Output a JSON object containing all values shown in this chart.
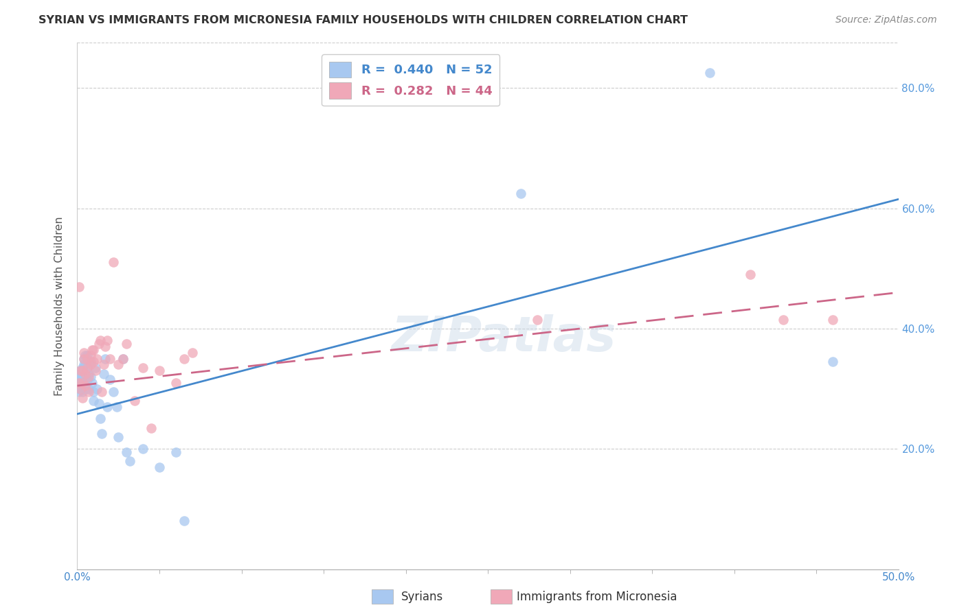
{
  "title": "SYRIAN VS IMMIGRANTS FROM MICRONESIA FAMILY HOUSEHOLDS WITH CHILDREN CORRELATION CHART",
  "source": "Source: ZipAtlas.com",
  "ylabel": "Family Households with Children",
  "xlabel_syrians": "Syrians",
  "xlabel_micronesia": "Immigrants from Micronesia",
  "xmin": 0.0,
  "xmax": 0.5,
  "ymin": 0.0,
  "ymax": 0.875,
  "watermark": "ZIPatlas",
  "legend_R_syrian": "0.440",
  "legend_N_syrian": "52",
  "legend_R_micronesia": "0.282",
  "legend_N_micronesia": "44",
  "color_syrian": "#a8c8f0",
  "color_micronesia": "#f0a8b8",
  "color_line_syrian": "#4488cc",
  "color_line_micronesia": "#cc6688",
  "color_right_axis": "#5599dd",
  "syrians_x": [
    0.001,
    0.001,
    0.001,
    0.002,
    0.002,
    0.002,
    0.002,
    0.003,
    0.003,
    0.003,
    0.003,
    0.004,
    0.004,
    0.004,
    0.004,
    0.005,
    0.005,
    0.005,
    0.005,
    0.006,
    0.006,
    0.006,
    0.007,
    0.007,
    0.007,
    0.008,
    0.008,
    0.009,
    0.01,
    0.01,
    0.011,
    0.012,
    0.013,
    0.014,
    0.015,
    0.016,
    0.017,
    0.018,
    0.02,
    0.022,
    0.024,
    0.025,
    0.028,
    0.03,
    0.032,
    0.04,
    0.05,
    0.06,
    0.065,
    0.27,
    0.385,
    0.46
  ],
  "syrians_y": [
    0.295,
    0.31,
    0.32,
    0.3,
    0.315,
    0.325,
    0.33,
    0.295,
    0.305,
    0.32,
    0.335,
    0.31,
    0.325,
    0.34,
    0.35,
    0.3,
    0.32,
    0.34,
    0.355,
    0.315,
    0.335,
    0.355,
    0.3,
    0.325,
    0.345,
    0.32,
    0.345,
    0.31,
    0.295,
    0.28,
    0.335,
    0.3,
    0.275,
    0.25,
    0.225,
    0.325,
    0.35,
    0.27,
    0.315,
    0.295,
    0.27,
    0.22,
    0.35,
    0.195,
    0.18,
    0.2,
    0.17,
    0.195,
    0.08,
    0.625,
    0.825,
    0.345
  ],
  "micronesia_x": [
    0.001,
    0.001,
    0.002,
    0.002,
    0.003,
    0.003,
    0.003,
    0.004,
    0.004,
    0.005,
    0.005,
    0.006,
    0.006,
    0.007,
    0.007,
    0.008,
    0.008,
    0.009,
    0.01,
    0.01,
    0.011,
    0.012,
    0.013,
    0.014,
    0.015,
    0.016,
    0.017,
    0.018,
    0.02,
    0.022,
    0.025,
    0.028,
    0.03,
    0.035,
    0.04,
    0.045,
    0.05,
    0.06,
    0.065,
    0.07,
    0.28,
    0.41,
    0.43,
    0.46
  ],
  "micronesia_y": [
    0.47,
    0.31,
    0.3,
    0.33,
    0.285,
    0.31,
    0.33,
    0.35,
    0.36,
    0.305,
    0.325,
    0.335,
    0.35,
    0.295,
    0.32,
    0.34,
    0.355,
    0.365,
    0.345,
    0.365,
    0.33,
    0.35,
    0.375,
    0.38,
    0.295,
    0.34,
    0.37,
    0.38,
    0.35,
    0.51,
    0.34,
    0.35,
    0.375,
    0.28,
    0.335,
    0.235,
    0.33,
    0.31,
    0.35,
    0.36,
    0.415,
    0.49,
    0.415,
    0.415
  ],
  "blue_line_x0": 0.0,
  "blue_line_y0": 0.258,
  "blue_line_x1": 0.5,
  "blue_line_y1": 0.615,
  "pink_line_x0": 0.0,
  "pink_line_y0": 0.305,
  "pink_line_x1": 0.5,
  "pink_line_y1": 0.46
}
